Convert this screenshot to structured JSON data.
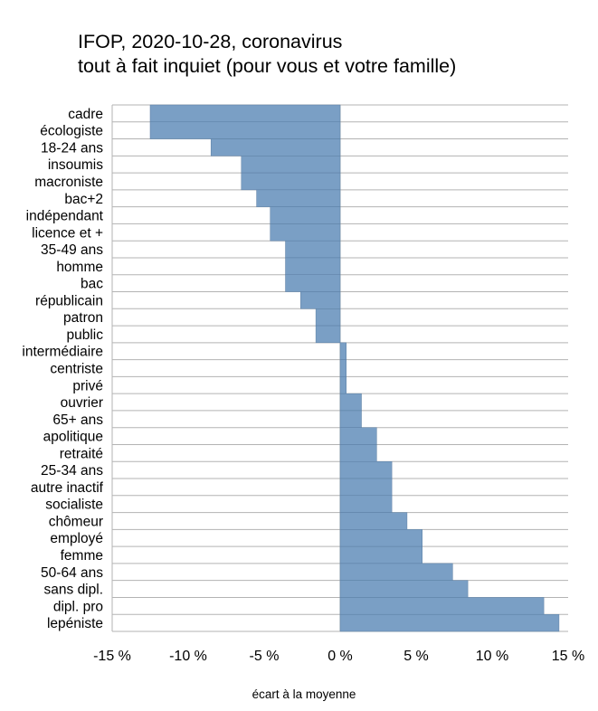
{
  "chart_data": {
    "type": "bar",
    "orientation": "horizontal",
    "title": "IFOP, 2020-10-28, coronavirus",
    "subtitle": "tout à fait inquiet (pour vous et votre famille)",
    "xlabel": "écart à la moyenne",
    "ylabel": "",
    "xlim": [
      -15,
      15
    ],
    "xticks": [
      -15,
      -10,
      -5,
      0,
      5,
      10,
      15
    ],
    "xtick_labels": [
      "-15 %",
      "-10 %",
      "-5 %",
      "0 %",
      "5 %",
      "10 %",
      "15 %"
    ],
    "grid": true,
    "bar_color": "#7a9fc5",
    "categories": [
      "cadre",
      "écologiste",
      "18-24 ans",
      "insoumis",
      "macroniste",
      "bac+2",
      "indépendant",
      "licence et +",
      "35-49 ans",
      "homme",
      "bac",
      "républicain",
      "patron",
      "public",
      "intermédiaire",
      "centriste",
      "privé",
      "ouvrier",
      "65+ ans",
      "apolitique",
      "retraité",
      "25-34 ans",
      "autre inactif",
      "socialiste",
      "chômeur",
      "employé",
      "femme",
      "50-64 ans",
      "sans dipl.",
      "dipl. pro",
      "lepéniste"
    ],
    "values": [
      -12.5,
      -12.5,
      -8.5,
      -6.5,
      -6.5,
      -5.5,
      -4.6,
      -4.6,
      -3.6,
      -3.6,
      -3.6,
      -2.6,
      -1.6,
      -1.6,
      0.4,
      0.4,
      0.4,
      1.4,
      1.4,
      2.4,
      2.4,
      3.4,
      3.4,
      3.4,
      4.4,
      5.4,
      5.4,
      7.4,
      8.4,
      13.4,
      14.4
    ]
  }
}
